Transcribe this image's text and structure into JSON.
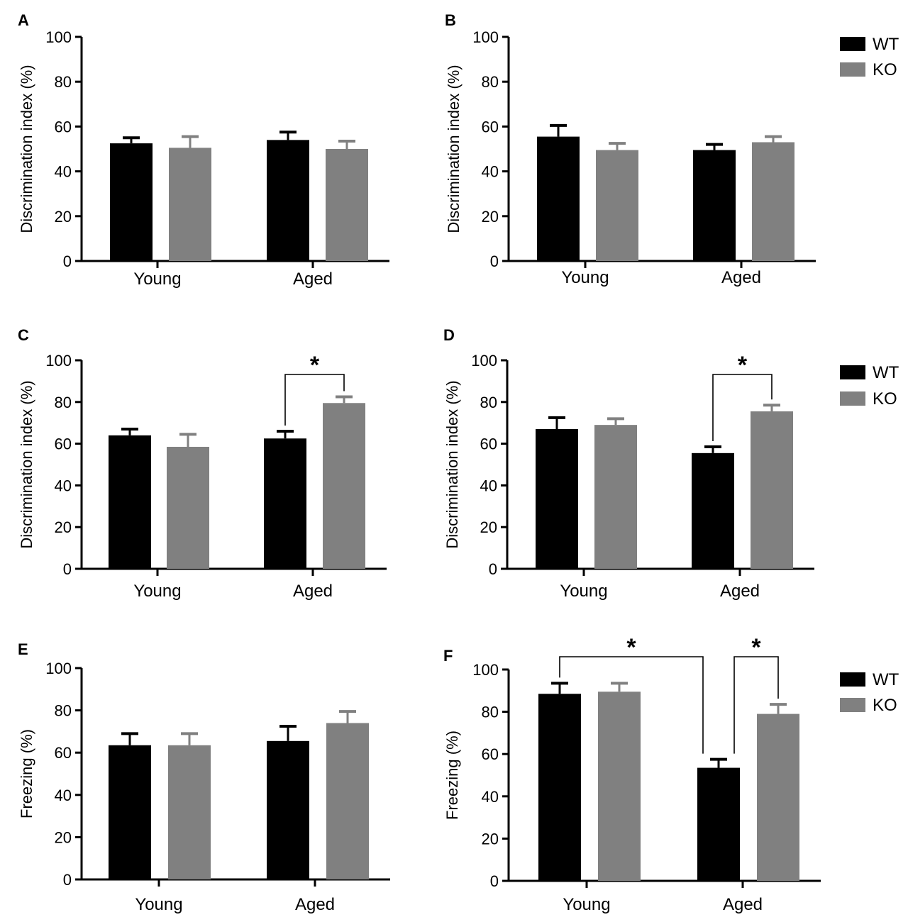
{
  "colors": {
    "WT": "#000000",
    "KO": "#808080"
  },
  "legend": {
    "wt_label": "WT",
    "ko_label": "KO"
  },
  "chart_data": [
    {
      "panel": "A",
      "type": "bar",
      "title": "",
      "ylabel": "Discrimination index (%)",
      "xlabel": "",
      "ylim": [
        0,
        100
      ],
      "yticks": [
        0,
        20,
        40,
        60,
        80,
        100
      ],
      "categories": [
        "Young",
        "Aged"
      ],
      "series": [
        {
          "name": "WT",
          "values": [
            52.5,
            54
          ],
          "errors": [
            2.5,
            3.5
          ]
        },
        {
          "name": "KO",
          "values": [
            50.5,
            50
          ],
          "errors": [
            5,
            3.5
          ]
        }
      ],
      "significance": []
    },
    {
      "panel": "B",
      "type": "bar",
      "title": "",
      "ylabel": "Discrimination index (%)",
      "xlabel": "",
      "ylim": [
        0,
        100
      ],
      "yticks": [
        0,
        20,
        40,
        60,
        80,
        100
      ],
      "categories": [
        "Young",
        "Aged"
      ],
      "series": [
        {
          "name": "WT",
          "values": [
            55.5,
            49.5
          ],
          "errors": [
            5,
            2.5
          ]
        },
        {
          "name": "KO",
          "values": [
            49.5,
            53
          ],
          "errors": [
            3,
            2.5
          ]
        }
      ],
      "significance": []
    },
    {
      "panel": "C",
      "type": "bar",
      "title": "",
      "ylabel": "Discrimination index (%)",
      "xlabel": "",
      "ylim": [
        0,
        100
      ],
      "yticks": [
        0,
        20,
        40,
        60,
        80,
        100
      ],
      "categories": [
        "Young",
        "Aged"
      ],
      "series": [
        {
          "name": "WT",
          "values": [
            64,
            62.5
          ],
          "errors": [
            3,
            3.5
          ]
        },
        {
          "name": "KO",
          "values": [
            58.5,
            79.5
          ],
          "errors": [
            6,
            3
          ]
        }
      ],
      "significance": [
        {
          "from": [
            1,
            0
          ],
          "to": [
            1,
            1
          ],
          "label": "*"
        }
      ]
    },
    {
      "panel": "D",
      "type": "bar",
      "title": "",
      "ylabel": "Discrimination index (%)",
      "xlabel": "",
      "ylim": [
        0,
        100
      ],
      "yticks": [
        0,
        20,
        40,
        60,
        80,
        100
      ],
      "categories": [
        "Young",
        "Aged"
      ],
      "series": [
        {
          "name": "WT",
          "values": [
            67,
            55.5
          ],
          "errors": [
            5.5,
            3
          ]
        },
        {
          "name": "KO",
          "values": [
            69,
            75.5
          ],
          "errors": [
            3,
            3
          ]
        }
      ],
      "significance": [
        {
          "from": [
            1,
            0
          ],
          "to": [
            1,
            1
          ],
          "label": "*"
        }
      ]
    },
    {
      "panel": "E",
      "type": "bar",
      "title": "",
      "ylabel": "Freezing (%)",
      "xlabel": "",
      "ylim": [
        0,
        100
      ],
      "yticks": [
        0,
        20,
        40,
        60,
        80,
        100
      ],
      "categories": [
        "Young",
        "Aged"
      ],
      "series": [
        {
          "name": "WT",
          "values": [
            63.5,
            65.5
          ],
          "errors": [
            5.5,
            7
          ]
        },
        {
          "name": "KO",
          "values": [
            63.5,
            74
          ],
          "errors": [
            5.5,
            5.5
          ]
        }
      ],
      "significance": []
    },
    {
      "panel": "F",
      "type": "bar",
      "title": "",
      "ylabel": "Freezing (%)",
      "xlabel": "",
      "ylim": [
        0,
        100
      ],
      "yticks": [
        0,
        20,
        40,
        60,
        80,
        100
      ],
      "categories": [
        "Young",
        "Aged"
      ],
      "series": [
        {
          "name": "WT",
          "values": [
            88.5,
            53.5
          ],
          "errors": [
            5,
            4
          ]
        },
        {
          "name": "KO",
          "values": [
            89.5,
            79
          ],
          "errors": [
            4,
            4.5
          ]
        }
      ],
      "significance": [
        {
          "from": [
            0,
            0
          ],
          "to": [
            1,
            0
          ],
          "label": "*"
        },
        {
          "from": [
            1,
            0
          ],
          "to": [
            1,
            1
          ],
          "label": "*"
        }
      ]
    }
  ]
}
